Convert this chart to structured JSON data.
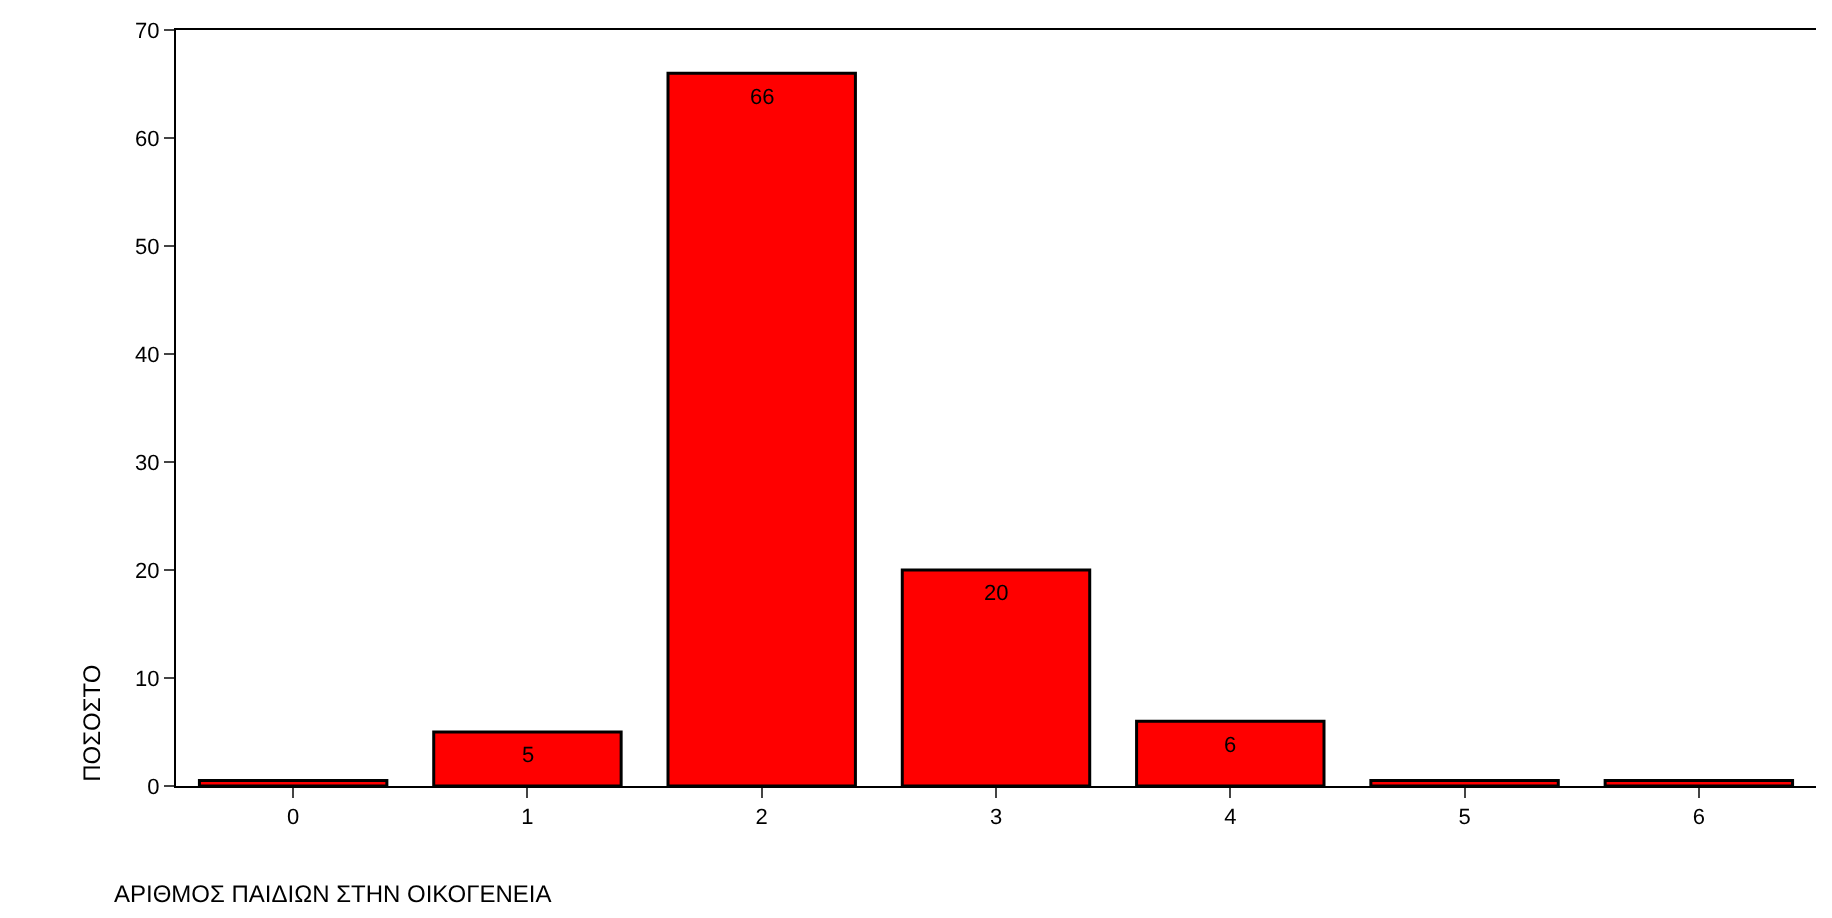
{
  "chart_data": {
    "type": "bar",
    "xlabel": "ΑΡΙΘΜΟΣ ΠΑΙΔΙΩΝ ΣΤΗΝ ΟΙΚΟΓΕΝΕΙΑ",
    "ylabel": "ΠΟΣΟΣΤΟ",
    "categories": [
      "0",
      "1",
      "2",
      "3",
      "4",
      "5",
      "6"
    ],
    "values": [
      0.5,
      5,
      66,
      20,
      6,
      0.5,
      0.5
    ],
    "value_labels": [
      null,
      "5",
      "66",
      "20",
      "6",
      null,
      null
    ],
    "color": "#ff0000",
    "ylim": [
      0,
      70
    ],
    "yticks": [
      0,
      10,
      20,
      30,
      40,
      50,
      60,
      70
    ]
  }
}
